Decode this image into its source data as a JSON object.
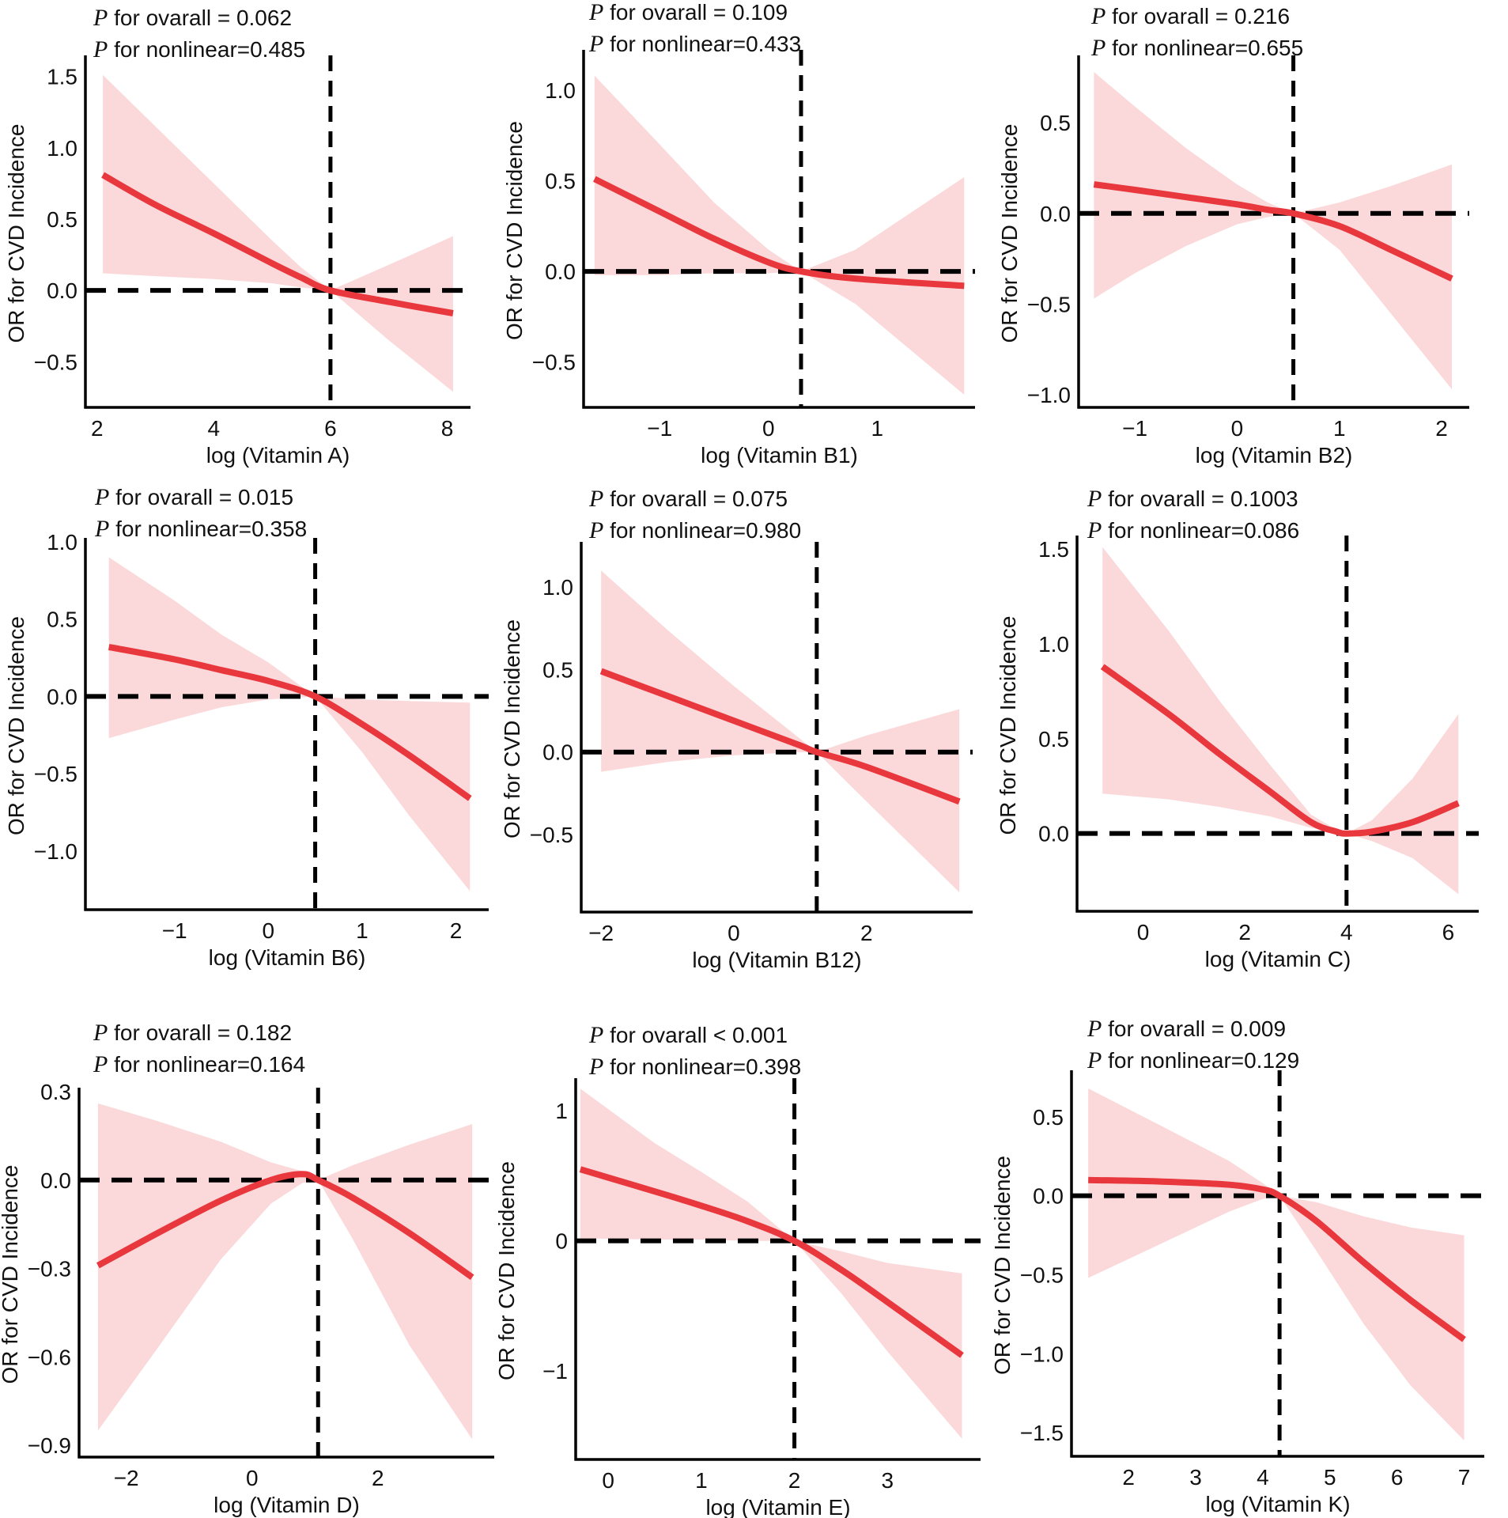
{
  "chart_data": [
    {
      "type": "line",
      "title": "",
      "xlabel": "log (Vitamin A)",
      "ylabel": "OR for CVD Incidence",
      "p_prefix": "P",
      "p_overall_text": " for ovarall = 0.062",
      "p_nonlinear_text": " for nonlinear=0.485",
      "xlim": [
        1.8,
        8.4
      ],
      "ylim": [
        -0.82,
        1.62
      ],
      "x_ticks": [
        2,
        4,
        6,
        8
      ],
      "x_tick_labels": [
        "2",
        "4",
        "6",
        "8"
      ],
      "y_ticks": [
        -0.5,
        0.0,
        0.5,
        1.0,
        1.5
      ],
      "y_tick_labels": [
        "−0.5",
        "0.0",
        "0.5",
        "1.0",
        "1.5"
      ],
      "reference_x": 6.0,
      "reference_y": 0.0,
      "series": [
        {
          "name": "OR",
          "color": "#e8373d",
          "x": [
            2.1,
            3.0,
            4.0,
            5.0,
            5.5,
            6.0,
            7.0,
            8.1
          ],
          "y": [
            0.81,
            0.6,
            0.4,
            0.19,
            0.09,
            0.0,
            -0.08,
            -0.16
          ]
        },
        {
          "name": "95% CI",
          "color": "#fbd9da",
          "x": [
            2.1,
            3.0,
            4.0,
            5.0,
            5.5,
            6.0,
            7.0,
            8.1
          ],
          "lower": [
            0.12,
            0.1,
            0.08,
            0.05,
            0.02,
            0.0,
            -0.35,
            -0.71
          ],
          "upper": [
            1.51,
            1.15,
            0.75,
            0.35,
            0.16,
            0.0,
            0.18,
            0.38
          ]
        }
      ]
    },
    {
      "type": "line",
      "title": "",
      "xlabel": "log (Vitamin B1)",
      "ylabel": "OR for CVD Incidence",
      "p_prefix": "P",
      "p_overall_text": " for ovarall = 0.109",
      "p_nonlinear_text": " for nonlinear=0.433",
      "xlim": [
        -1.7,
        1.9
      ],
      "ylim": [
        -0.75,
        1.2
      ],
      "x_ticks": [
        -1,
        0,
        1
      ],
      "x_tick_labels": [
        "−1",
        "0",
        "1"
      ],
      "y_ticks": [
        -0.5,
        0.0,
        0.5,
        1.0
      ],
      "y_tick_labels": [
        "−0.5",
        "0.0",
        "0.5",
        "1.0"
      ],
      "reference_x": 0.3,
      "reference_y": 0.0,
      "series": [
        {
          "name": "OR",
          "color": "#e8373d",
          "x": [
            -1.6,
            -1.0,
            -0.5,
            0.0,
            0.3,
            0.8,
            1.8
          ],
          "y": [
            0.51,
            0.33,
            0.18,
            0.05,
            0.0,
            -0.04,
            -0.08
          ]
        },
        {
          "name": "95% CI",
          "color": "#fbd9da",
          "x": [
            -1.6,
            -1.0,
            -0.5,
            0.0,
            0.3,
            0.8,
            1.8
          ],
          "lower": [
            -0.02,
            -0.02,
            -0.01,
            -0.01,
            0.0,
            -0.18,
            -0.68
          ]
        },
        {
          "name": "95% CI upper",
          "color": "#fbd9da",
          "x": [
            -1.6,
            -1.0,
            -0.5,
            0.0,
            0.3,
            0.8,
            1.8
          ],
          "y": [
            1.08,
            0.7,
            0.38,
            0.12,
            0.0,
            0.12,
            0.52
          ]
        }
      ]
    },
    {
      "type": "line",
      "title": "",
      "xlabel": "log (Vitamin B2)",
      "ylabel": "OR for CVD Incidence",
      "p_prefix": "P",
      "p_overall_text": " for ovarall = 0.216",
      "p_nonlinear_text": " for nonlinear=0.655",
      "xlim": [
        -1.55,
        2.27
      ],
      "ylim": [
        -1.07,
        0.85
      ],
      "x_ticks": [
        -1,
        0,
        1,
        2
      ],
      "x_tick_labels": [
        "−1",
        "0",
        "1",
        "2"
      ],
      "y_ticks": [
        -1.0,
        -0.5,
        0.0,
        0.5
      ],
      "y_tick_labels": [
        "−1.0",
        "−0.5",
        "0.0",
        "0.5"
      ],
      "reference_x": 0.55,
      "reference_y": 0.0,
      "series": [
        {
          "name": "OR",
          "color": "#e8373d",
          "x": [
            -1.4,
            -1.0,
            -0.5,
            0.0,
            0.3,
            0.55,
            1.0,
            1.5,
            2.1
          ],
          "y": [
            0.16,
            0.13,
            0.09,
            0.05,
            0.02,
            0.0,
            -0.07,
            -0.2,
            -0.36
          ]
        },
        {
          "name": "95% CI",
          "color": "#fbd9da",
          "x": [
            -1.4,
            -1.0,
            -0.5,
            0.0,
            0.3,
            0.55,
            1.0,
            1.5,
            2.1
          ],
          "lower": [
            -0.47,
            -0.33,
            -0.18,
            -0.06,
            -0.02,
            0.0,
            -0.2,
            -0.55,
            -0.97
          ],
          "upper": [
            0.78,
            0.59,
            0.36,
            0.16,
            0.06,
            0.0,
            0.06,
            0.15,
            0.27
          ]
        }
      ]
    },
    {
      "type": "line",
      "title": "",
      "xlabel": "log (Vitamin B6)",
      "ylabel": "OR for CVD Incidence",
      "p_prefix": "P",
      "p_overall_text": " for ovarall = 0.015",
      "p_nonlinear_text": " for nonlinear=0.358",
      "xlim": [
        -1.95,
        2.35
      ],
      "ylim": [
        -1.38,
        1.0
      ],
      "x_ticks": [
        -1,
        0,
        1,
        2
      ],
      "x_tick_labels": [
        "−1",
        "0",
        "1",
        "2"
      ],
      "y_ticks": [
        -1.0,
        -0.5,
        0.0,
        0.5,
        1.0
      ],
      "y_tick_labels": [
        "−1.0",
        "−0.5",
        "0.0",
        "0.5",
        "1.0"
      ],
      "reference_x": 0.5,
      "reference_y": 0.0,
      "series": [
        {
          "name": "OR",
          "color": "#e8373d",
          "x": [
            -1.7,
            -1.0,
            -0.5,
            0.0,
            0.5,
            1.0,
            1.5,
            2.15
          ],
          "y": [
            0.32,
            0.24,
            0.17,
            0.1,
            0.0,
            -0.18,
            -0.38,
            -0.66
          ]
        },
        {
          "name": "95% CI",
          "color": "#fbd9da",
          "x": [
            -1.7,
            -1.0,
            -0.5,
            0.0,
            0.5,
            1.0,
            1.5,
            2.15
          ],
          "lower": [
            -0.27,
            -0.15,
            -0.07,
            -0.02,
            0.0,
            -0.36,
            -0.77,
            -1.26
          ],
          "upper": [
            0.9,
            0.62,
            0.4,
            0.22,
            0.0,
            -0.02,
            -0.03,
            -0.04
          ]
        }
      ]
    },
    {
      "type": "line",
      "title": "",
      "xlabel": "log (Vitamin B12)",
      "ylabel": "OR for CVD Incidence",
      "p_prefix": "P",
      "p_overall_text": " for ovarall = 0.075",
      "p_nonlinear_text": " for nonlinear=0.980",
      "xlim": [
        -2.3,
        3.6
      ],
      "ylim": [
        -0.97,
        1.25
      ],
      "x_ticks": [
        -2,
        0,
        2
      ],
      "x_tick_labels": [
        "−2",
        "0",
        "2"
      ],
      "y_ticks": [
        -0.5,
        0.0,
        0.5,
        1.0
      ],
      "y_tick_labels": [
        "−0.5",
        "0.0",
        "0.5",
        "1.0"
      ],
      "reference_x": 1.25,
      "reference_y": 0.0,
      "series": [
        {
          "name": "OR",
          "color": "#e8373d",
          "x": [
            -2.0,
            -1.0,
            0.0,
            1.0,
            1.25,
            2.0,
            3.4
          ],
          "y": [
            0.49,
            0.34,
            0.19,
            0.04,
            0.0,
            -0.09,
            -0.3
          ]
        },
        {
          "name": "95% CI",
          "color": "#fbd9da",
          "x": [
            -2.0,
            -1.0,
            0.0,
            1.0,
            1.25,
            2.0,
            3.4
          ],
          "lower": [
            -0.12,
            -0.06,
            -0.02,
            0.0,
            0.0,
            -0.3,
            -0.85
          ],
          "upper": [
            1.1,
            0.74,
            0.4,
            0.08,
            0.0,
            0.1,
            0.26
          ]
        }
      ]
    },
    {
      "type": "line",
      "title": "",
      "xlabel": "log (Vitamin C)",
      "ylabel": "OR for CVD Incidence",
      "p_prefix": "P",
      "p_overall_text": " for ovarall = 0.1003",
      "p_nonlinear_text": " for nonlinear=0.086",
      "xlim": [
        -1.3,
        6.6
      ],
      "ylim": [
        -0.41,
        1.55
      ],
      "x_ticks": [
        0,
        2,
        4,
        6
      ],
      "x_tick_labels": [
        "0",
        "2",
        "4",
        "6"
      ],
      "y_ticks": [
        0.0,
        0.5,
        1.0,
        1.5
      ],
      "y_tick_labels": [
        "0.0",
        "0.5",
        "1.0",
        "1.5"
      ],
      "reference_x": 4.0,
      "reference_y": 0.0,
      "series": [
        {
          "name": "OR",
          "color": "#e8373d",
          "x": [
            -0.8,
            0.5,
            1.5,
            2.5,
            3.3,
            3.8,
            4.0,
            4.5,
            5.3,
            6.2
          ],
          "y": [
            0.88,
            0.63,
            0.42,
            0.22,
            0.06,
            0.01,
            0.0,
            0.01,
            0.06,
            0.16
          ]
        },
        {
          "name": "95% CI",
          "color": "#fbd9da",
          "x": [
            -0.8,
            0.5,
            1.5,
            2.5,
            3.3,
            3.8,
            4.0,
            4.5,
            5.3,
            6.2
          ],
          "lower": [
            0.21,
            0.18,
            0.14,
            0.09,
            0.03,
            0.01,
            0.0,
            -0.04,
            -0.13,
            -0.32
          ],
          "upper": [
            1.51,
            1.07,
            0.7,
            0.36,
            0.1,
            0.02,
            0.0,
            0.07,
            0.29,
            0.63
          ]
        }
      ]
    },
    {
      "type": "line",
      "title": "",
      "xlabel": "log (Vitamin D)",
      "ylabel": "OR for CVD Incidence",
      "p_prefix": "P",
      "p_overall_text": " for ovarall = 0.182",
      "p_nonlinear_text": " for nonlinear=0.164",
      "xlim": [
        -2.75,
        3.85
      ],
      "ylim": [
        -0.94,
        0.3
      ],
      "x_ticks": [
        -2,
        0,
        2
      ],
      "x_tick_labels": [
        "−2",
        "0",
        "2"
      ],
      "y_ticks": [
        -0.9,
        -0.6,
        -0.3,
        0.0,
        0.3
      ],
      "y_tick_labels": [
        "−0.9",
        "−0.6",
        "−0.3",
        "0.0",
        "0.3"
      ],
      "reference_x": 1.05,
      "reference_y": 0.0,
      "series": [
        {
          "name": "OR",
          "color": "#e8373d",
          "x": [
            -2.45,
            -1.5,
            -0.5,
            0.3,
            0.8,
            1.05,
            1.6,
            2.5,
            3.5
          ],
          "y": [
            -0.29,
            -0.18,
            -0.07,
            0.0,
            0.02,
            0.0,
            -0.06,
            -0.18,
            -0.33
          ]
        },
        {
          "name": "95% CI",
          "color": "#fbd9da",
          "x": [
            -2.45,
            -1.5,
            -0.5,
            0.3,
            0.8,
            1.05,
            1.6,
            2.5,
            3.5
          ],
          "lower": [
            -0.85,
            -0.57,
            -0.27,
            -0.08,
            -0.01,
            0.0,
            -0.2,
            -0.56,
            -0.88
          ],
          "upper": [
            0.26,
            0.2,
            0.13,
            0.06,
            0.03,
            0.0,
            0.05,
            0.12,
            0.19
          ]
        }
      ]
    },
    {
      "type": "line",
      "title": "",
      "xlabel": "log (Vitamin E)",
      "ylabel": "OR for CVD Incidence",
      "p_prefix": "P",
      "p_overall_text": " for ovarall < 0.001",
      "p_nonlinear_text": " for nonlinear=0.398",
      "xlim": [
        -0.35,
        4.0
      ],
      "ylim": [
        -1.68,
        1.22
      ],
      "x_ticks": [
        0,
        1,
        2,
        3
      ],
      "x_tick_labels": [
        "0",
        "1",
        "2",
        "3"
      ],
      "y_ticks": [
        -1,
        0,
        1
      ],
      "y_tick_labels": [
        "−1",
        "0",
        "1"
      ],
      "reference_x": 2.0,
      "reference_y": 0.0,
      "series": [
        {
          "name": "OR",
          "color": "#e8373d",
          "x": [
            -0.3,
            0.5,
            1.0,
            1.5,
            2.0,
            2.5,
            3.0,
            3.8
          ],
          "y": [
            0.55,
            0.38,
            0.27,
            0.15,
            0.0,
            -0.22,
            -0.47,
            -0.88
          ]
        },
        {
          "name": "95% CI",
          "color": "#fbd9da",
          "x": [
            -0.3,
            0.5,
            1.0,
            1.5,
            2.0,
            2.5,
            3.0,
            3.8
          ],
          "lower": [
            0.02,
            0.01,
            0.01,
            0.0,
            0.0,
            -0.4,
            -0.85,
            -1.52
          ],
          "upper": [
            1.17,
            0.75,
            0.53,
            0.3,
            0.0,
            -0.08,
            -0.17,
            -0.25
          ]
        }
      ]
    },
    {
      "type": "line",
      "title": "",
      "xlabel": "log (Vitamin K)",
      "ylabel": "OR for CVD Incidence",
      "p_prefix": "P",
      "p_overall_text": " for ovarall = 0.009",
      "p_nonlinear_text": " for nonlinear=0.129",
      "xlim": [
        1.15,
        7.3
      ],
      "ylim": [
        -1.65,
        0.77
      ],
      "x_ticks": [
        2,
        3,
        4,
        5,
        6,
        7
      ],
      "x_tick_labels": [
        "2",
        "3",
        "4",
        "5",
        "6",
        "7"
      ],
      "y_ticks": [
        -1.5,
        -1.0,
        -0.5,
        0.0,
        0.5
      ],
      "y_tick_labels": [
        "−1.5",
        "−1.0",
        "−0.5",
        "0.0",
        "0.5"
      ],
      "reference_x": 4.25,
      "reference_y": 0.0,
      "series": [
        {
          "name": "OR",
          "color": "#e8373d",
          "x": [
            1.4,
            2.5,
            3.5,
            4.0,
            4.25,
            4.8,
            5.5,
            6.2,
            7.0
          ],
          "y": [
            0.1,
            0.09,
            0.07,
            0.04,
            0.0,
            -0.16,
            -0.42,
            -0.66,
            -0.91
          ]
        },
        {
          "name": "95% CI",
          "color": "#fbd9da",
          "x": [
            1.4,
            2.5,
            3.5,
            4.0,
            4.25,
            4.8,
            5.5,
            6.2,
            7.0
          ],
          "lower": [
            -0.52,
            -0.3,
            -0.1,
            -0.02,
            0.0,
            -0.35,
            -0.81,
            -1.2,
            -1.55
          ],
          "upper": [
            0.68,
            0.44,
            0.22,
            0.08,
            0.0,
            -0.04,
            -0.13,
            -0.2,
            -0.25
          ]
        }
      ]
    }
  ]
}
